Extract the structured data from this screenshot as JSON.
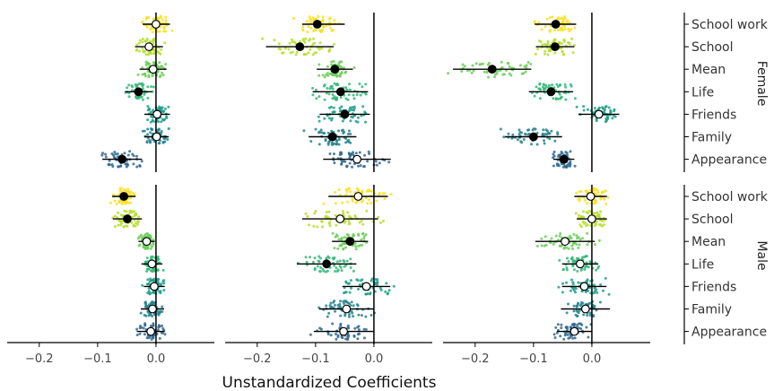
{
  "chart_data": {
    "type": "scatter",
    "xlabel": "Unstandardized Coefficients",
    "xlim": [
      -0.255,
      0.1
    ],
    "xticks": [
      -0.2,
      -0.1,
      0.0
    ],
    "xtick_labels": [
      "−0.2",
      "−0.1",
      "0.0"
    ],
    "categories": [
      "School work",
      "School",
      "Mean",
      "Life",
      "Friends",
      "Family",
      "Appearance"
    ],
    "rows": [
      "Female",
      "Male"
    ],
    "category_colors": [
      "#f9e11e",
      "#b5de2b",
      "#6ccd5a",
      "#35b779",
      "#1f9e89",
      "#26828e",
      "#31688e"
    ],
    "panels": [
      {
        "row": "Female",
        "col": 1,
        "points": [
          {
            "category": "School work",
            "estimate": 0.0,
            "lo": -0.023,
            "hi": 0.024,
            "significant": false
          },
          {
            "category": "School",
            "estimate": -0.012,
            "lo": -0.036,
            "hi": 0.012,
            "significant": false
          },
          {
            "category": "Mean",
            "estimate": -0.005,
            "lo": -0.028,
            "hi": 0.018,
            "significant": false
          },
          {
            "category": "Life",
            "estimate": -0.03,
            "lo": -0.053,
            "hi": -0.007,
            "significant": true
          },
          {
            "category": "Friends",
            "estimate": 0.002,
            "lo": -0.02,
            "hi": 0.024,
            "significant": false
          },
          {
            "category": "Family",
            "estimate": 0.001,
            "lo": -0.02,
            "hi": 0.022,
            "significant": false
          },
          {
            "category": "Appearance",
            "estimate": -0.058,
            "lo": -0.092,
            "hi": -0.024,
            "significant": true
          }
        ]
      },
      {
        "row": "Female",
        "col": 2,
        "points": [
          {
            "category": "School work",
            "estimate": -0.097,
            "lo": -0.123,
            "hi": -0.05,
            "significant": true
          },
          {
            "category": "School",
            "estimate": -0.127,
            "lo": -0.185,
            "hi": -0.069,
            "significant": true
          },
          {
            "category": "Mean",
            "estimate": -0.067,
            "lo": -0.098,
            "hi": -0.036,
            "significant": true
          },
          {
            "category": "Life",
            "estimate": -0.057,
            "lo": -0.105,
            "hi": -0.01,
            "significant": true
          },
          {
            "category": "Friends",
            "estimate": -0.05,
            "lo": -0.093,
            "hi": -0.007,
            "significant": true
          },
          {
            "category": "Family",
            "estimate": -0.071,
            "lo": -0.112,
            "hi": -0.03,
            "significant": true
          },
          {
            "category": "Appearance",
            "estimate": -0.029,
            "lo": -0.087,
            "hi": 0.029,
            "significant": false
          }
        ]
      },
      {
        "row": "Female",
        "col": 3,
        "points": [
          {
            "category": "School work",
            "estimate": -0.062,
            "lo": -0.098,
            "hi": -0.027,
            "significant": true
          },
          {
            "category": "School",
            "estimate": -0.063,
            "lo": -0.096,
            "hi": -0.03,
            "significant": true
          },
          {
            "category": "Mean",
            "estimate": -0.171,
            "lo": -0.238,
            "hi": -0.104,
            "significant": true
          },
          {
            "category": "Life",
            "estimate": -0.07,
            "lo": -0.108,
            "hi": -0.032,
            "significant": true
          },
          {
            "category": "Friends",
            "estimate": 0.012,
            "lo": -0.023,
            "hi": 0.047,
            "significant": false
          },
          {
            "category": "Family",
            "estimate": -0.1,
            "lo": -0.149,
            "hi": -0.051,
            "significant": true
          },
          {
            "category": "Appearance",
            "estimate": -0.048,
            "lo": -0.066,
            "hi": -0.03,
            "significant": true
          }
        ]
      },
      {
        "row": "Male",
        "col": 1,
        "points": [
          {
            "category": "School work",
            "estimate": -0.055,
            "lo": -0.075,
            "hi": -0.035,
            "significant": true
          },
          {
            "category": "School",
            "estimate": -0.049,
            "lo": -0.074,
            "hi": -0.024,
            "significant": true
          },
          {
            "category": "Mean",
            "estimate": -0.016,
            "lo": -0.03,
            "hi": -0.002,
            "significant": false
          },
          {
            "category": "Life",
            "estimate": -0.007,
            "lo": -0.025,
            "hi": 0.011,
            "significant": false
          },
          {
            "category": "Friends",
            "estimate": -0.003,
            "lo": -0.021,
            "hi": 0.015,
            "significant": false
          },
          {
            "category": "Family",
            "estimate": -0.006,
            "lo": -0.026,
            "hi": 0.014,
            "significant": false
          },
          {
            "category": "Appearance",
            "estimate": -0.009,
            "lo": -0.033,
            "hi": 0.015,
            "significant": false
          }
        ]
      },
      {
        "row": "Male",
        "col": 2,
        "points": [
          {
            "category": "School work",
            "estimate": -0.027,
            "lo": -0.078,
            "hi": 0.024,
            "significant": false
          },
          {
            "category": "School",
            "estimate": -0.058,
            "lo": -0.123,
            "hi": 0.007,
            "significant": false
          },
          {
            "category": "Mean",
            "estimate": -0.041,
            "lo": -0.072,
            "hi": -0.01,
            "significant": true
          },
          {
            "category": "Life",
            "estimate": -0.081,
            "lo": -0.132,
            "hi": -0.03,
            "significant": true
          },
          {
            "category": "Friends",
            "estimate": -0.013,
            "lo": -0.054,
            "hi": 0.028,
            "significant": false
          },
          {
            "category": "Family",
            "estimate": -0.047,
            "lo": -0.094,
            "hi": 0.0,
            "significant": false
          },
          {
            "category": "Appearance",
            "estimate": -0.052,
            "lo": -0.103,
            "hi": -0.001,
            "significant": false
          }
        ]
      },
      {
        "row": "Male",
        "col": 3,
        "points": [
          {
            "category": "School work",
            "estimate": -0.002,
            "lo": -0.03,
            "hi": 0.026,
            "significant": false
          },
          {
            "category": "School",
            "estimate": 0.0,
            "lo": -0.026,
            "hi": 0.026,
            "significant": false
          },
          {
            "category": "Mean",
            "estimate": -0.046,
            "lo": -0.097,
            "hi": 0.005,
            "significant": false
          },
          {
            "category": "Life",
            "estimate": -0.02,
            "lo": -0.051,
            "hi": 0.011,
            "significant": false
          },
          {
            "category": "Friends",
            "estimate": -0.013,
            "lo": -0.051,
            "hi": 0.025,
            "significant": false
          },
          {
            "category": "Family",
            "estimate": -0.011,
            "lo": -0.053,
            "hi": 0.031,
            "significant": false
          },
          {
            "category": "Appearance",
            "estimate": -0.03,
            "lo": -0.06,
            "hi": 0.0,
            "significant": false
          }
        ]
      }
    ],
    "grid": false,
    "legend": "none"
  }
}
